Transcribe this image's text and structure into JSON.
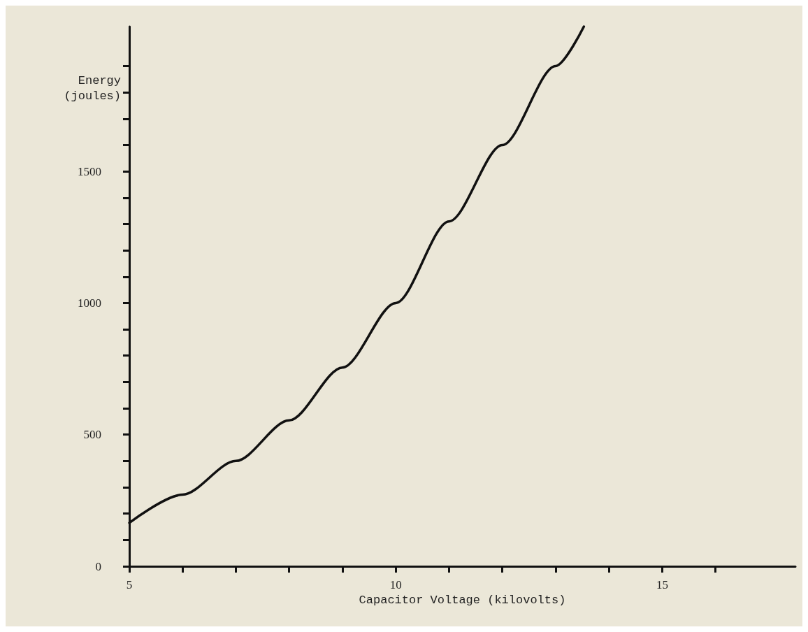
{
  "chart_data": {
    "type": "line",
    "xlabel": "Capacitor Voltage (kilovolts)",
    "ylabel": "Energy (joules)",
    "x": [
      5,
      6,
      7,
      8,
      9,
      10,
      11,
      12,
      13,
      13.53
    ],
    "values": [
      165,
      272,
      400,
      554,
      755,
      1000,
      1310,
      1600,
      1900,
      2050
    ],
    "color": "#111111",
    "marker": "none",
    "line_style": "solid",
    "grid": false,
    "xlim": [
      5,
      17.5
    ],
    "ylim": [
      0,
      2050
    ],
    "xticks": [
      5,
      {
        "value": 6,
        "label": null
      },
      {
        "value": 7,
        "label": null
      },
      {
        "value": 8,
        "label": null
      },
      {
        "value": 9,
        "label": null
      },
      10,
      {
        "value": 11,
        "label": null
      },
      {
        "value": 12,
        "label": null
      },
      {
        "value": 13,
        "label": null
      },
      {
        "value": 14,
        "label": null
      },
      15,
      {
        "value": 16,
        "label": null
      }
    ],
    "yticks": [
      0,
      {
        "value": 100,
        "label": null
      },
      {
        "value": 200,
        "label": null
      },
      {
        "value": 300,
        "label": null
      },
      {
        "value": 400,
        "label": null
      },
      500,
      {
        "value": 600,
        "label": null
      },
      {
        "value": 700,
        "label": null
      },
      {
        "value": 800,
        "label": null
      },
      {
        "value": 900,
        "label": null
      },
      1000,
      {
        "value": 1100,
        "label": null
      },
      {
        "value": 1200,
        "label": null
      },
      {
        "value": 1300,
        "label": null
      },
      {
        "value": 1400,
        "label": null
      },
      1500,
      {
        "value": 1600,
        "label": null
      },
      {
        "value": 1700,
        "label": null
      },
      {
        "value": 1800,
        "label": null
      },
      {
        "value": 1900,
        "label": null
      }
    ]
  }
}
